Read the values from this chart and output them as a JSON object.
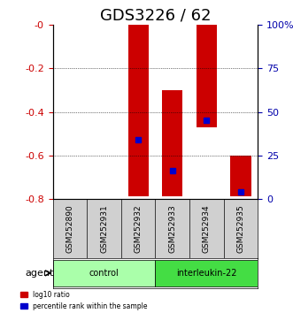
{
  "title": "GDS3226 / 62",
  "samples": [
    "GSM252890",
    "GSM252931",
    "GSM252932",
    "GSM252933",
    "GSM252934",
    "GSM252935"
  ],
  "groups": [
    {
      "label": "control",
      "color": "#90EE90",
      "samples": [
        0,
        1,
        2
      ]
    },
    {
      "label": "interleukin-22",
      "color": "#00CC00",
      "samples": [
        3,
        4,
        5
      ]
    }
  ],
  "bar_top": [
    0.0,
    0.0,
    0.0,
    -0.3,
    0.0,
    -0.6
  ],
  "bar_bottom": [
    0.0,
    0.0,
    -0.79,
    -0.79,
    -0.47,
    -0.79
  ],
  "blue_marker_y": [
    null,
    null,
    -0.53,
    -0.67,
    -0.44,
    -0.77
  ],
  "ylim_left": [
    -0.8,
    0.0
  ],
  "ylim_right": [
    0,
    100
  ],
  "yticks_left": [
    0.0,
    -0.2,
    -0.4,
    -0.6,
    -0.8
  ],
  "yticks_right": [
    0,
    25,
    50,
    75,
    100
  ],
  "bar_color": "#CC0000",
  "blue_color": "#0000CC",
  "bar_width": 0.6,
  "legend_items": [
    {
      "color": "#CC0000",
      "label": "log10 ratio"
    },
    {
      "color": "#0000CC",
      "label": "percentile rank within the sample"
    }
  ],
  "agent_label": "agent",
  "left_axis_color": "#CC0000",
  "right_axis_color": "#0000AA",
  "title_fontsize": 13,
  "tick_fontsize": 8,
  "label_fontsize": 9
}
